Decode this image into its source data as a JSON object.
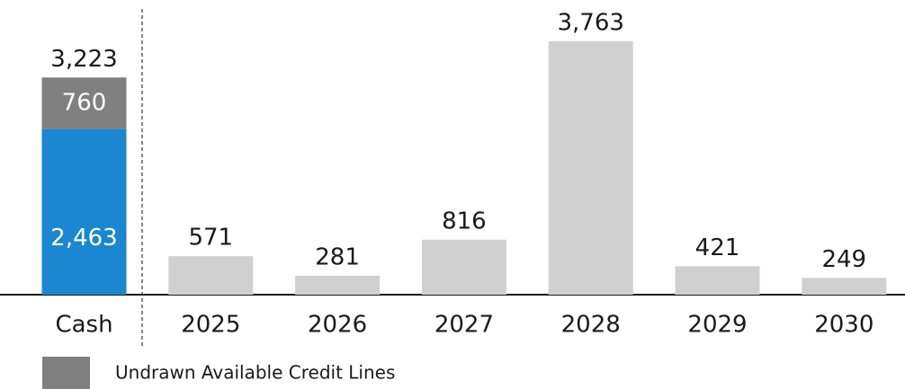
{
  "chart_data": {
    "type": "bar",
    "stacked": true,
    "categories": [
      "Cash",
      "2025",
      "2026",
      "2027",
      "2028",
      "2029",
      "2030"
    ],
    "series": [
      {
        "color": "#1a87d0",
        "values": [
          2463,
          null,
          null,
          null,
          null,
          null,
          null
        ],
        "value_labels": [
          "2,463",
          null,
          null,
          null,
          null,
          null,
          null
        ]
      },
      {
        "name": "Undrawn Available Credit Lines",
        "color": "#808080",
        "values": [
          760,
          null,
          null,
          null,
          null,
          null,
          null
        ]
      },
      {
        "color": "#d0d0d0",
        "values": [
          null,
          571,
          281,
          816,
          3763,
          421,
          249
        ],
        "value_labels": [
          null,
          "571",
          "281",
          "816",
          "3,763",
          "421",
          "249"
        ]
      }
    ],
    "stack_total": 3223,
    "stack_total_label": "3,223",
    "ylim": [
      0,
      4000
    ]
  }
}
